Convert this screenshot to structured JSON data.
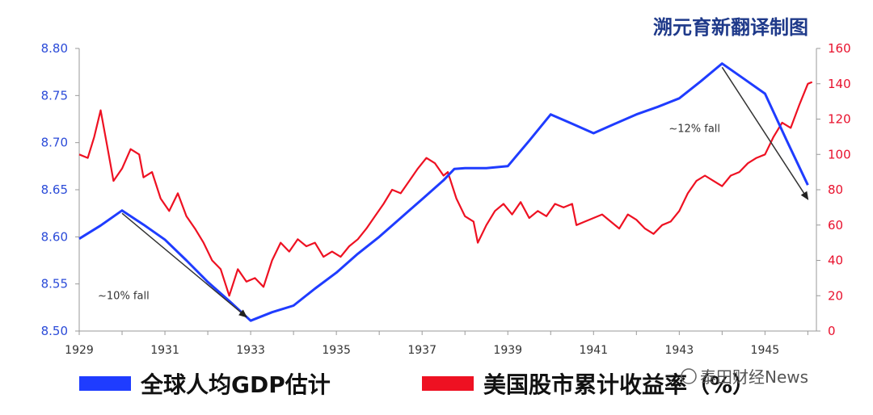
{
  "watermark": "溯元育新翻译制图",
  "source_note": "泰田财经News",
  "colors": {
    "gdp": "#1f3cff",
    "stocks": "#ee1122",
    "arrow": "#333333",
    "left_axis": "#2b4bd8",
    "right_axis": "#e8112d"
  },
  "chart_data": {
    "type": "line",
    "title": "",
    "x_ticks": [
      "1929",
      "1931",
      "1933",
      "1935",
      "1937",
      "1939",
      "1941",
      "1943",
      "1945"
    ],
    "x_range": [
      1929,
      1946.2
    ],
    "y_left": {
      "ticks": [
        "8.50",
        "8.55",
        "8.60",
        "8.65",
        "8.70",
        "8.75",
        "8.80"
      ],
      "range": [
        8.5,
        8.8
      ]
    },
    "y_right": {
      "ticks": [
        "0",
        "20",
        "40",
        "60",
        "80",
        "100",
        "120",
        "140",
        "160"
      ],
      "range": [
        0,
        160
      ]
    },
    "legend_position": "bottom",
    "series": [
      {
        "name": "全球人均GDP估计",
        "axis": "left",
        "points": [
          [
            1929.0,
            8.598
          ],
          [
            1929.5,
            8.612
          ],
          [
            1930.0,
            8.628
          ],
          [
            1930.5,
            8.613
          ],
          [
            1931.0,
            8.597
          ],
          [
            1931.5,
            8.575
          ],
          [
            1932.0,
            8.552
          ],
          [
            1932.5,
            8.532
          ],
          [
            1933.0,
            8.511
          ],
          [
            1933.5,
            8.52
          ],
          [
            1934.0,
            8.527
          ],
          [
            1934.5,
            8.545
          ],
          [
            1935.0,
            8.562
          ],
          [
            1935.5,
            8.582
          ],
          [
            1936.0,
            8.6
          ],
          [
            1936.5,
            8.62
          ],
          [
            1937.0,
            8.64
          ],
          [
            1937.5,
            8.66
          ],
          [
            1937.75,
            8.672
          ],
          [
            1938.0,
            8.673
          ],
          [
            1938.5,
            8.673
          ],
          [
            1939.0,
            8.675
          ],
          [
            1939.5,
            8.702
          ],
          [
            1940.0,
            8.73
          ],
          [
            1940.5,
            8.72
          ],
          [
            1941.0,
            8.71
          ],
          [
            1941.5,
            8.72
          ],
          [
            1942.0,
            8.73
          ],
          [
            1942.5,
            8.738
          ],
          [
            1943.0,
            8.747
          ],
          [
            1943.5,
            8.765
          ],
          [
            1944.0,
            8.784
          ],
          [
            1944.5,
            8.768
          ],
          [
            1945.0,
            8.752
          ],
          [
            1945.5,
            8.703
          ],
          [
            1946.0,
            8.655
          ]
        ]
      },
      {
        "name": "美国股市累计收益率（%）",
        "axis": "right",
        "points": [
          [
            1929.0,
            100
          ],
          [
            1929.2,
            98
          ],
          [
            1929.35,
            110
          ],
          [
            1929.5,
            125
          ],
          [
            1929.65,
            105
          ],
          [
            1929.8,
            85
          ],
          [
            1930.0,
            92
          ],
          [
            1930.2,
            103
          ],
          [
            1930.4,
            100
          ],
          [
            1930.5,
            87
          ],
          [
            1930.7,
            90
          ],
          [
            1930.9,
            75
          ],
          [
            1931.1,
            68
          ],
          [
            1931.3,
            78
          ],
          [
            1931.5,
            65
          ],
          [
            1931.7,
            58
          ],
          [
            1931.9,
            50
          ],
          [
            1932.1,
            40
          ],
          [
            1932.3,
            35
          ],
          [
            1932.5,
            20
          ],
          [
            1932.7,
            35
          ],
          [
            1932.9,
            28
          ],
          [
            1933.1,
            30
          ],
          [
            1933.3,
            25
          ],
          [
            1933.5,
            40
          ],
          [
            1933.7,
            50
          ],
          [
            1933.9,
            45
          ],
          [
            1934.1,
            52
          ],
          [
            1934.3,
            48
          ],
          [
            1934.5,
            50
          ],
          [
            1934.7,
            42
          ],
          [
            1934.9,
            45
          ],
          [
            1935.1,
            42
          ],
          [
            1935.3,
            48
          ],
          [
            1935.5,
            52
          ],
          [
            1935.7,
            58
          ],
          [
            1935.9,
            65
          ],
          [
            1936.1,
            72
          ],
          [
            1936.3,
            80
          ],
          [
            1936.5,
            78
          ],
          [
            1936.7,
            85
          ],
          [
            1936.9,
            92
          ],
          [
            1937.1,
            98
          ],
          [
            1937.3,
            95
          ],
          [
            1937.5,
            88
          ],
          [
            1937.6,
            90
          ],
          [
            1937.8,
            75
          ],
          [
            1938.0,
            65
          ],
          [
            1938.2,
            62
          ],
          [
            1938.3,
            50
          ],
          [
            1938.5,
            60
          ],
          [
            1938.7,
            68
          ],
          [
            1938.9,
            72
          ],
          [
            1939.1,
            66
          ],
          [
            1939.3,
            73
          ],
          [
            1939.5,
            64
          ],
          [
            1939.7,
            68
          ],
          [
            1939.9,
            65
          ],
          [
            1940.1,
            72
          ],
          [
            1940.3,
            70
          ],
          [
            1940.5,
            72
          ],
          [
            1940.6,
            60
          ],
          [
            1940.8,
            62
          ],
          [
            1941.0,
            64
          ],
          [
            1941.2,
            66
          ],
          [
            1941.4,
            62
          ],
          [
            1941.6,
            58
          ],
          [
            1941.8,
            66
          ],
          [
            1942.0,
            63
          ],
          [
            1942.2,
            58
          ],
          [
            1942.4,
            55
          ],
          [
            1942.6,
            60
          ],
          [
            1942.8,
            62
          ],
          [
            1943.0,
            68
          ],
          [
            1943.2,
            78
          ],
          [
            1943.4,
            85
          ],
          [
            1943.6,
            88
          ],
          [
            1943.8,
            85
          ],
          [
            1944.0,
            82
          ],
          [
            1944.2,
            88
          ],
          [
            1944.4,
            90
          ],
          [
            1944.6,
            95
          ],
          [
            1944.8,
            98
          ],
          [
            1945.0,
            100
          ],
          [
            1945.2,
            110
          ],
          [
            1945.4,
            118
          ],
          [
            1945.6,
            115
          ],
          [
            1945.8,
            128
          ],
          [
            1946.0,
            140
          ],
          [
            1946.1,
            141
          ]
        ]
      }
    ],
    "annotations": [
      {
        "text": "~10% fall",
        "arrow": {
          "from": [
            1930.0,
            8.625
          ],
          "to": [
            1932.9,
            8.515
          ]
        }
      },
      {
        "text": "~12% fall",
        "arrow": {
          "from": [
            1944.0,
            8.78
          ],
          "to": [
            1946.0,
            8.64
          ]
        }
      }
    ]
  }
}
